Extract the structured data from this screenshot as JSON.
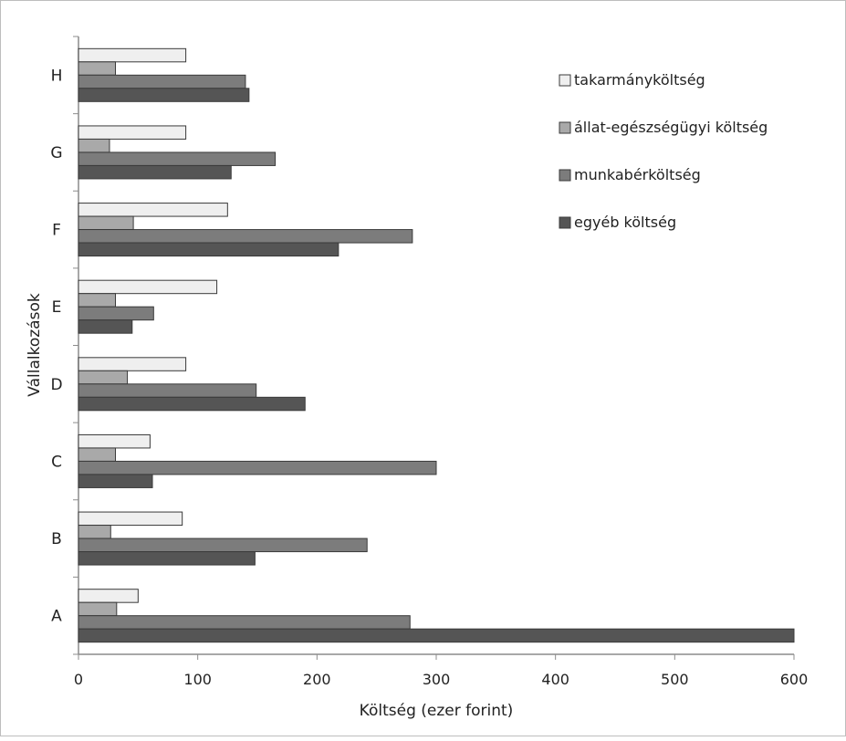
{
  "chart_data": {
    "type": "bar",
    "orientation": "horizontal",
    "categories": [
      "A",
      "B",
      "C",
      "D",
      "E",
      "F",
      "G",
      "H"
    ],
    "series": [
      {
        "name": "takarmányköltség",
        "color": "#efefef",
        "values": [
          50,
          87,
          60,
          90,
          116,
          125,
          90,
          90
        ]
      },
      {
        "name": "állat-egészségügyi költség",
        "color": "#a9a9a9",
        "values": [
          32,
          27,
          31,
          41,
          31,
          46,
          26,
          31
        ]
      },
      {
        "name": "munkabérköltség",
        "color": "#7c7c7c",
        "values": [
          278,
          242,
          300,
          149,
          63,
          280,
          165,
          140
        ]
      },
      {
        "name": "egyéb költség",
        "color": "#555555",
        "values": [
          600,
          148,
          62,
          190,
          45,
          218,
          128,
          143
        ]
      }
    ],
    "xlabel": "Költség (ezer forint)",
    "ylabel": "Vállalkozások",
    "xlim": [
      0,
      600
    ],
    "xticks": [
      "0",
      "100",
      "200",
      "300",
      "400",
      "500",
      "600"
    ],
    "grid": false,
    "legend_position": "top-right"
  }
}
